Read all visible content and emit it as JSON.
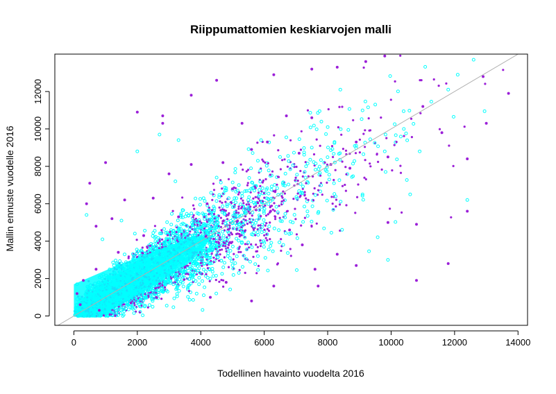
{
  "chart_data": {
    "type": "scatter",
    "title": "Riippumattomien keskiarvojen malli",
    "xlabel": "Todellinen havainto vuodelta 2016",
    "ylabel": "Mallin ennuste vuodelle 2016",
    "xlim": [
      -600,
      14300
    ],
    "ylim": [
      -500,
      14000
    ],
    "xticks": [
      "0",
      "2000",
      "4000",
      "6000",
      "8000",
      "10000",
      "12000",
      "14000"
    ],
    "yticks": [
      "0",
      "2000",
      "4000",
      "6000",
      "8000",
      "10000",
      "12000"
    ],
    "grid": false,
    "legend": "none",
    "reference_line": {
      "type": "identity",
      "slope": 1,
      "intercept": 0,
      "color": "#b0b0b0"
    },
    "series": [
      {
        "color": "#9b1fd8",
        "marker": "filled-dot",
        "values_sample": [
          [
            4500,
            12600
          ],
          [
            3700,
            11800
          ],
          [
            6300,
            12900
          ],
          [
            7500,
            13200
          ],
          [
            8300,
            13300
          ],
          [
            9200,
            13600
          ],
          [
            9800,
            13900
          ],
          [
            2000,
            10900
          ],
          [
            2800,
            10700
          ],
          [
            2800,
            10300
          ],
          [
            5300,
            10300
          ],
          [
            6700,
            10700
          ],
          [
            7500,
            10600
          ],
          [
            8900,
            9300
          ],
          [
            9900,
            8500
          ],
          [
            10800,
            4900
          ],
          [
            10800,
            1900
          ],
          [
            11800,
            2800
          ],
          [
            12400,
            5600
          ],
          [
            12400,
            8400
          ],
          [
            13000,
            10300
          ],
          [
            13700,
            11900
          ],
          [
            12900,
            12800
          ],
          [
            11000,
            11200
          ],
          [
            11600,
            9800
          ],
          [
            1000,
            8200
          ],
          [
            500,
            7100
          ],
          [
            400,
            6000
          ],
          [
            700,
            4800
          ],
          [
            1200,
            5200
          ],
          [
            1600,
            6200
          ],
          [
            2500,
            6300
          ],
          [
            3000,
            7600
          ],
          [
            3700,
            8100
          ],
          [
            4700,
            8200
          ],
          [
            5600,
            8900
          ],
          [
            6100,
            9300
          ],
          [
            7100,
            8700
          ],
          [
            8100,
            8100
          ],
          [
            8700,
            7900
          ],
          [
            6200,
            5600
          ],
          [
            6800,
            4600
          ],
          [
            7200,
            3800
          ],
          [
            7600,
            2500
          ],
          [
            8300,
            3300
          ],
          [
            8900,
            2700
          ],
          [
            9900,
            5000
          ],
          [
            7700,
            1600
          ],
          [
            6300,
            1600
          ],
          [
            5600,
            800
          ],
          [
            4800,
            1800
          ],
          [
            4300,
            1000
          ],
          [
            3500,
            2600
          ],
          [
            2600,
            1000
          ],
          [
            1800,
            700
          ],
          [
            5000,
            6800
          ],
          [
            4200,
            6000
          ],
          [
            3300,
            5300
          ],
          [
            2200,
            4300
          ],
          [
            1400,
            3400
          ],
          [
            700,
            2500
          ],
          [
            300,
            1900
          ],
          [
            100,
            1200
          ],
          [
            200,
            600
          ],
          [
            800,
            300
          ]
        ]
      },
      {
        "color": "#00ffff",
        "marker": "open-circle",
        "values_sample": [
          [
            12600,
            13700
          ],
          [
            12100,
            12900
          ],
          [
            12400,
            6200
          ],
          [
            10600,
            6500
          ],
          [
            9900,
            3000
          ],
          [
            11800,
            12100
          ],
          [
            8400,
            12100
          ],
          [
            5900,
            9400
          ],
          [
            8000,
            10100
          ],
          [
            9500,
            11300
          ],
          [
            10400,
            10000
          ],
          [
            10900,
            8800
          ],
          [
            9800,
            8800
          ],
          [
            8900,
            9100
          ],
          [
            7500,
            9000
          ],
          [
            6500,
            8500
          ],
          [
            5800,
            8300
          ],
          [
            3300,
            9400
          ],
          [
            2700,
            9700
          ],
          [
            2000,
            8800
          ],
          [
            400,
            5400
          ],
          [
            900,
            4100
          ],
          [
            1500,
            5100
          ],
          [
            3200,
            7200
          ],
          [
            4500,
            7400
          ],
          [
            5200,
            7000
          ],
          [
            6600,
            7000
          ],
          [
            7300,
            7400
          ],
          [
            8200,
            7100
          ],
          [
            9100,
            6500
          ],
          [
            7700,
            5500
          ],
          [
            6900,
            5000
          ],
          [
            6600,
            3800
          ],
          [
            5800,
            3200
          ],
          [
            5200,
            2300
          ],
          [
            4300,
            2000
          ],
          [
            3600,
            1600
          ],
          [
            2800,
            1300
          ],
          [
            2100,
            900
          ],
          [
            1500,
            500
          ],
          [
            1000,
            200
          ],
          [
            600,
            100
          ],
          [
            300,
            300
          ],
          [
            100,
            900
          ],
          [
            100,
            1700
          ]
        ]
      }
    ]
  }
}
